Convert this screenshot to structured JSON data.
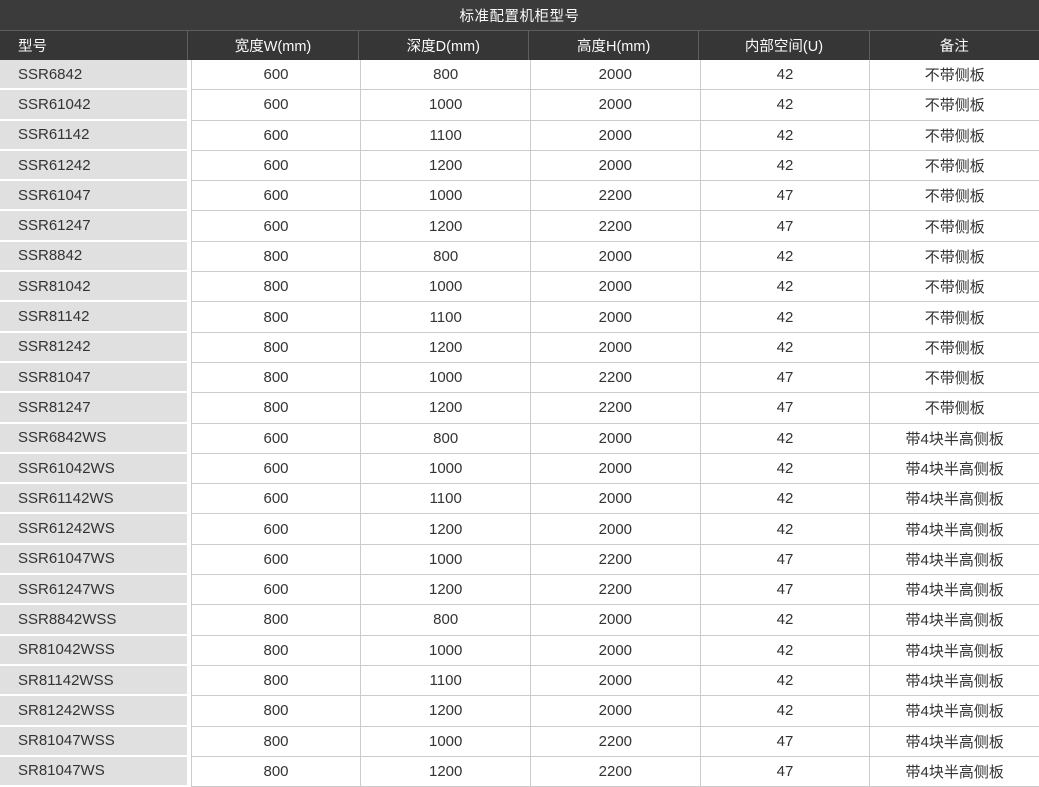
{
  "colors": {
    "header_bg": "#3b3b3b",
    "header_bg2": "#363636",
    "header_sep": "#5e5e5e",
    "header_text": "#fafafa",
    "model_col_bg": "#e0e0e0",
    "grid_line": "#cccccc",
    "cell_text": "#333333"
  },
  "table": {
    "title": "标准配置机柜型号",
    "columns": [
      "型号",
      "宽度W(mm)",
      "深度D(mm)",
      "高度H(mm)",
      "内部空间(U)",
      "备注"
    ],
    "rows": [
      [
        "SSR6842",
        "600",
        "800",
        "2000",
        "42",
        "不带侧板"
      ],
      [
        "SSR61042",
        "600",
        "1000",
        "2000",
        "42",
        "不带侧板"
      ],
      [
        "SSR61142",
        "600",
        "1100",
        "2000",
        "42",
        "不带侧板"
      ],
      [
        "SSR61242",
        "600",
        "1200",
        "2000",
        "42",
        "不带侧板"
      ],
      [
        "SSR61047",
        "600",
        "1000",
        "2200",
        "47",
        "不带侧板"
      ],
      [
        "SSR61247",
        "600",
        "1200",
        "2200",
        "47",
        "不带侧板"
      ],
      [
        "SSR8842",
        "800",
        "800",
        "2000",
        "42",
        "不带侧板"
      ],
      [
        "SSR81042",
        "800",
        "1000",
        "2000",
        "42",
        "不带侧板"
      ],
      [
        "SSR81142",
        "800",
        "1100",
        "2000",
        "42",
        "不带侧板"
      ],
      [
        "SSR81242",
        "800",
        "1200",
        "2000",
        "42",
        "不带侧板"
      ],
      [
        "SSR81047",
        "800",
        "1000",
        "2200",
        "47",
        "不带侧板"
      ],
      [
        "SSR81247",
        "800",
        "1200",
        "2200",
        "47",
        "不带侧板"
      ],
      [
        "SSR6842WS",
        "600",
        "800",
        "2000",
        "42",
        "带4块半高侧板"
      ],
      [
        "SSR61042WS",
        "600",
        "1000",
        "2000",
        "42",
        "带4块半高侧板"
      ],
      [
        "SSR61142WS",
        "600",
        "1100",
        "2000",
        "42",
        "带4块半高侧板"
      ],
      [
        "SSR61242WS",
        "600",
        "1200",
        "2000",
        "42",
        "带4块半高侧板"
      ],
      [
        "SSR61047WS",
        "600",
        "1000",
        "2200",
        "47",
        "带4块半高侧板"
      ],
      [
        "SSR61247WS",
        "600",
        "1200",
        "2200",
        "47",
        "带4块半高侧板"
      ],
      [
        "SSR8842WSS",
        "800",
        "800",
        "2000",
        "42",
        "带4块半高侧板"
      ],
      [
        "SR81042WSS",
        "800",
        "1000",
        "2000",
        "42",
        "带4块半高侧板"
      ],
      [
        "SR81142WSS",
        "800",
        "1100",
        "2000",
        "42",
        "带4块半高侧板"
      ],
      [
        "SR81242WSS",
        "800",
        "1200",
        "2000",
        "42",
        "带4块半高侧板"
      ],
      [
        "SR81047WSS",
        "800",
        "1000",
        "2200",
        "47",
        "带4块半高侧板"
      ],
      [
        "SR81047WS",
        "800",
        "1200",
        "2200",
        "47",
        "带4块半高侧板"
      ]
    ]
  }
}
